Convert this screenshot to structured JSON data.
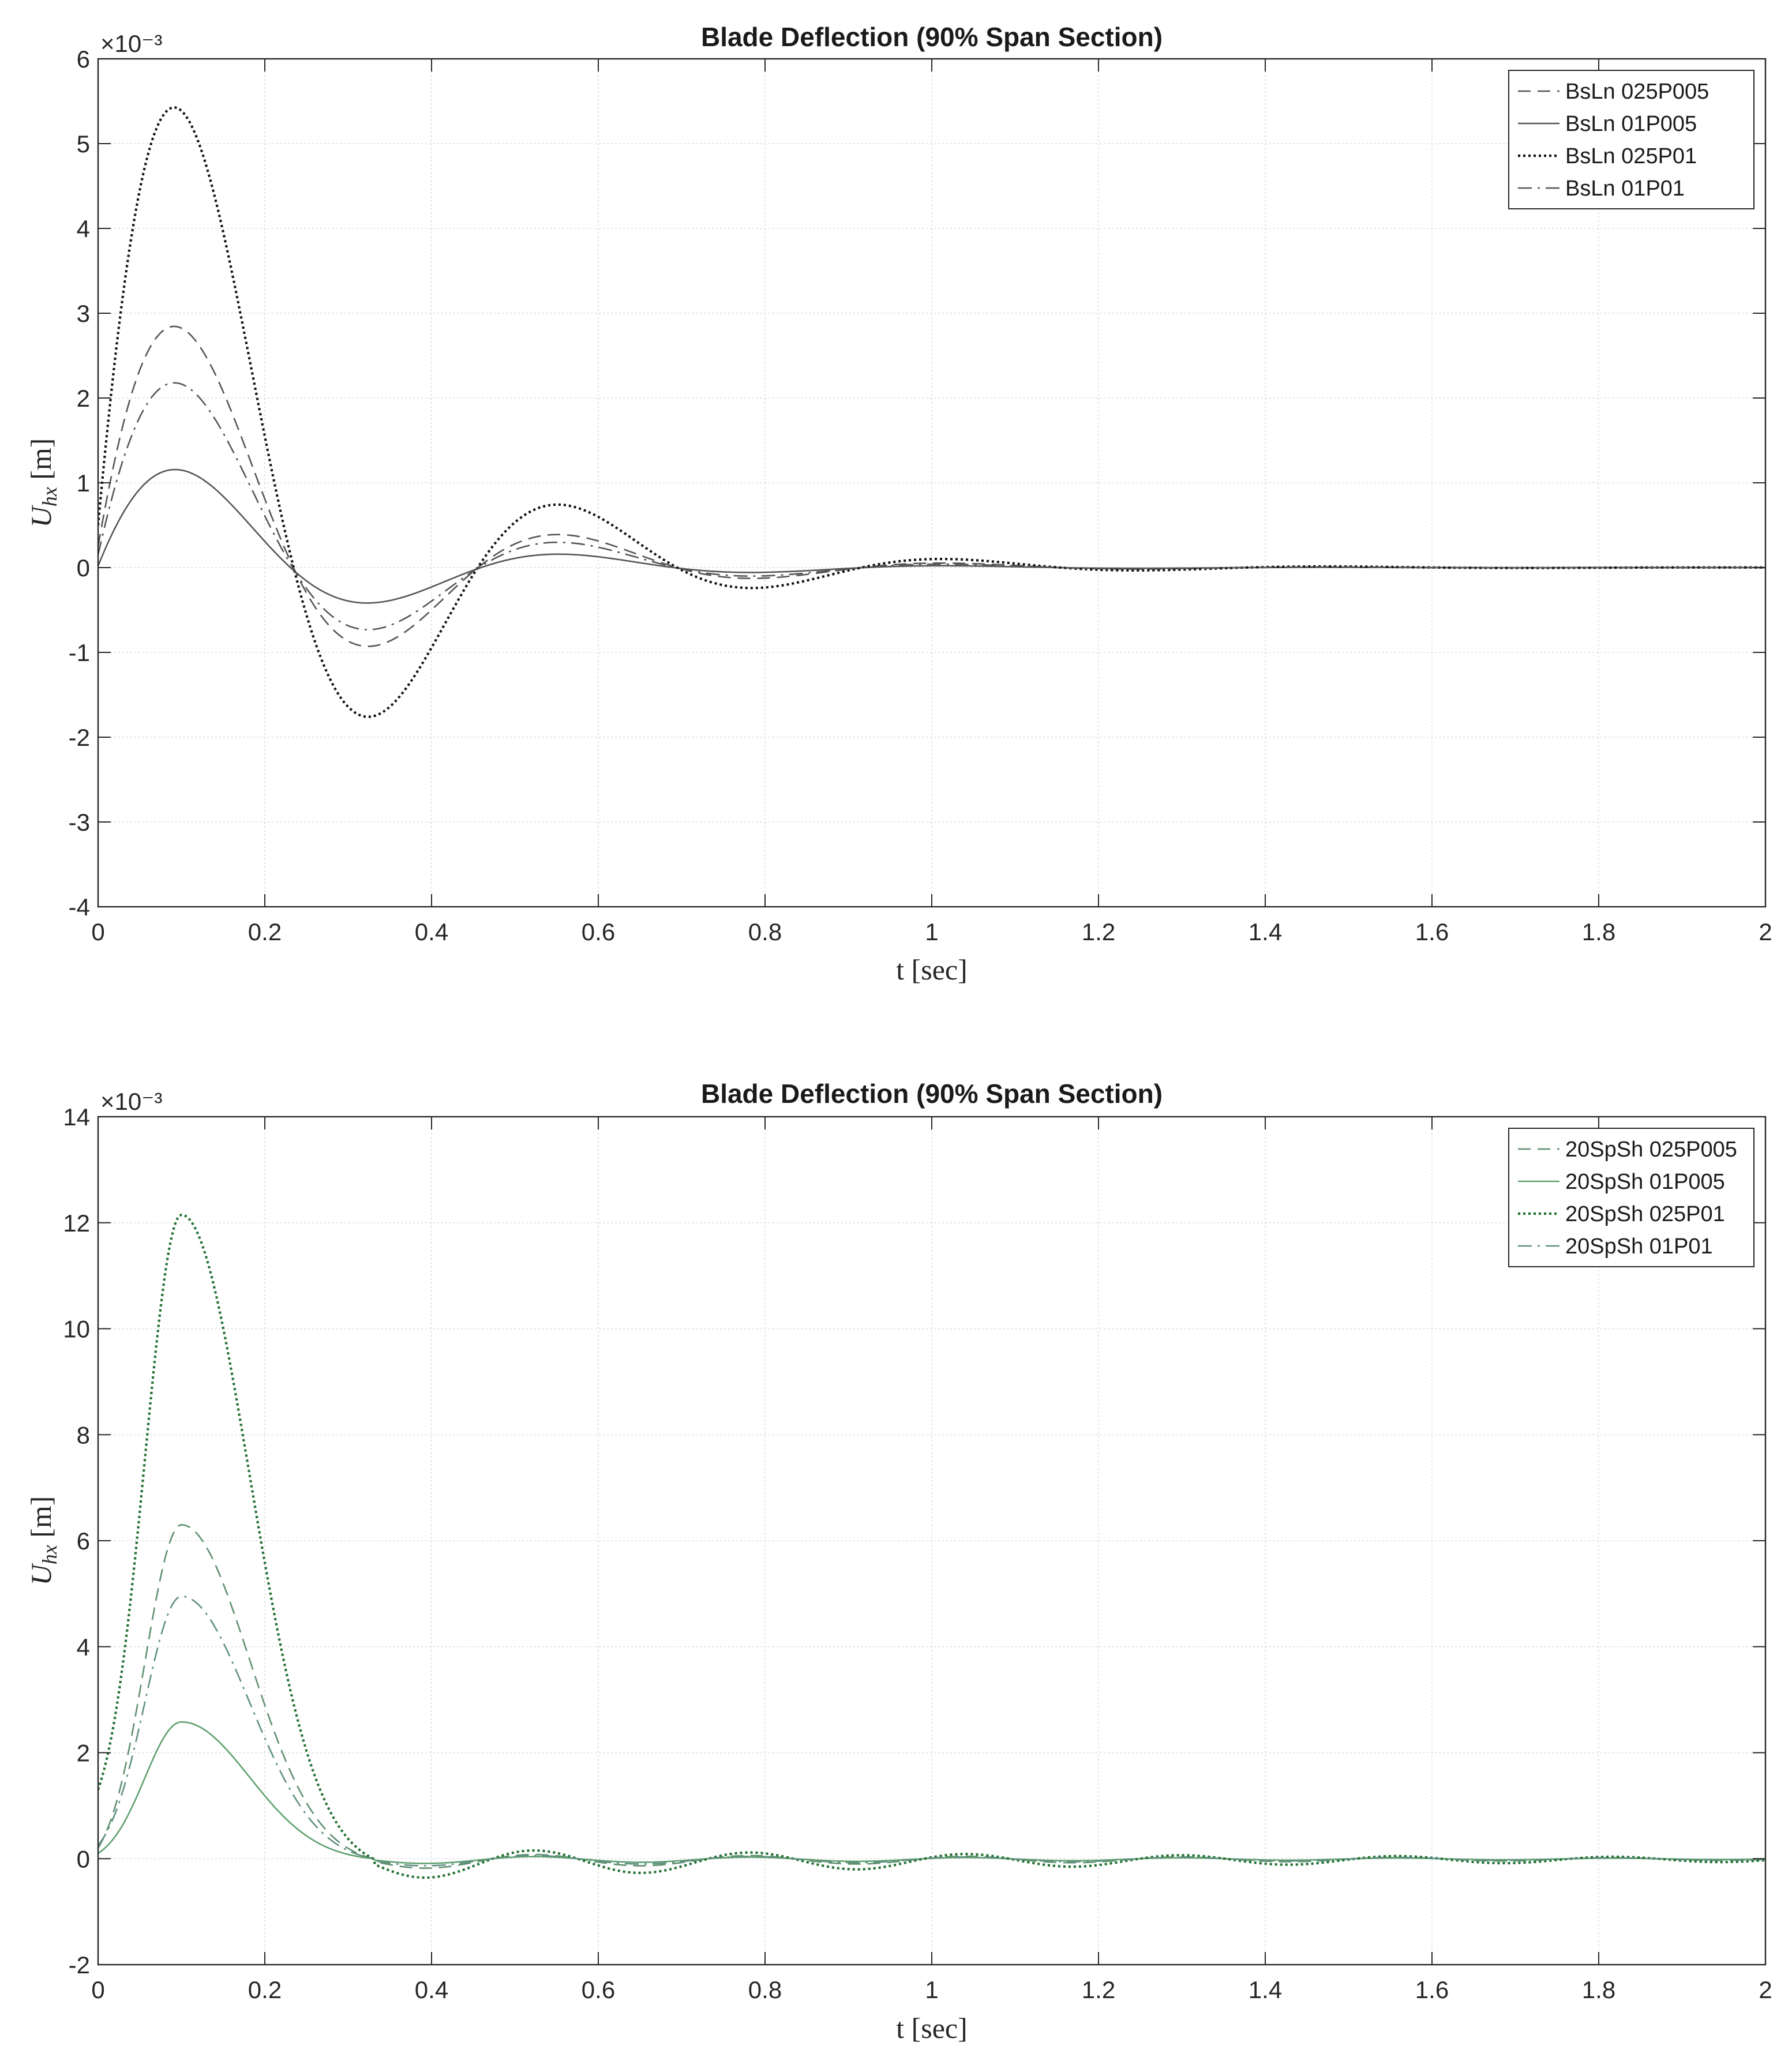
{
  "chart_data": [
    {
      "type": "line",
      "title": "Blade Deflection (90% Span Section)",
      "xlabel": "t [sec]",
      "ylabel": "U_hx [m]",
      "y_exponent_label": "×10⁻³",
      "xlim": [
        0,
        2
      ],
      "ylim": [
        -4,
        6
      ],
      "xticks": [
        "0",
        "0.2",
        "0.4",
        "0.6",
        "0.8",
        "1",
        "1.2",
        "1.4",
        "1.6",
        "1.8",
        "2"
      ],
      "yticks": [
        "-4",
        "-3",
        "-2",
        "-1",
        "0",
        "1",
        "2",
        "3",
        "4",
        "5",
        "6"
      ],
      "grid": true,
      "legend_position": "top-right",
      "series_model": {
        "kind": "damped sine",
        "t_from": 0,
        "t_to": 2,
        "period": 0.46,
        "decay_per_half_period": 0.37
      },
      "series": [
        {
          "name": "BsLn  025P005",
          "style": "dashed",
          "color": "#555555",
          "y0": 0.00025,
          "peak": 0.0027,
          "y_offset": 0
        },
        {
          "name": "BsLn  01P005",
          "style": "solid",
          "color": "#555555",
          "y0": 2e-05,
          "peak": 0.0011,
          "y_offset": 0
        },
        {
          "name": "BsLn  025P01",
          "style": "dotted",
          "color": "#111111",
          "y0": 0.0005,
          "peak": 0.00515,
          "y_offset": 0
        },
        {
          "name": "BsLn  01P01",
          "style": "dashdot",
          "color": "#555555",
          "y0": 0.00015,
          "peak": 0.00207,
          "y_offset": 0
        }
      ]
    },
    {
      "type": "line",
      "title": "Blade Deflection (90% Span Section)",
      "xlabel": "t [sec]",
      "ylabel": "U_hx [m]",
      "y_exponent_label": "×10⁻³",
      "xlim": [
        0,
        2
      ],
      "ylim": [
        -2,
        14
      ],
      "xticks": [
        "0",
        "0.2",
        "0.4",
        "0.6",
        "0.8",
        "1",
        "1.2",
        "1.4",
        "1.6",
        "1.8",
        "2"
      ],
      "yticks": [
        "-2",
        "0",
        "2",
        "4",
        "6",
        "8",
        "10",
        "12",
        "14"
      ],
      "grid": true,
      "legend_position": "top-right",
      "series_model": {
        "kind": "pulse then small ripple",
        "t_from": 0,
        "t_to": 2,
        "pulse_peak_time": 0.1,
        "pulse_end_time": 0.33,
        "ripple_period": 0.22
      },
      "series": [
        {
          "name": "20SpSh  025P005",
          "style": "dashed",
          "color": "#5f8f6f",
          "y0": 0.0002,
          "peak": 0.0063,
          "ripple": 8e-05
        },
        {
          "name": "20SpSh  01P005",
          "style": "solid",
          "color": "#5fa06f",
          "y0": 0.0001,
          "peak": 0.00258,
          "ripple": 4e-05
        },
        {
          "name": "20SpSh  025P01",
          "style": "dotted",
          "color": "#1f6f2f",
          "y0": 0.0013,
          "peak": 0.01215,
          "ripple": 0.00016
        },
        {
          "name": "20SpSh  01P01",
          "style": "dashdot",
          "color": "#5f8f80",
          "y0": 0.00025,
          "peak": 0.00495,
          "ripple": 6e-05
        }
      ]
    }
  ]
}
